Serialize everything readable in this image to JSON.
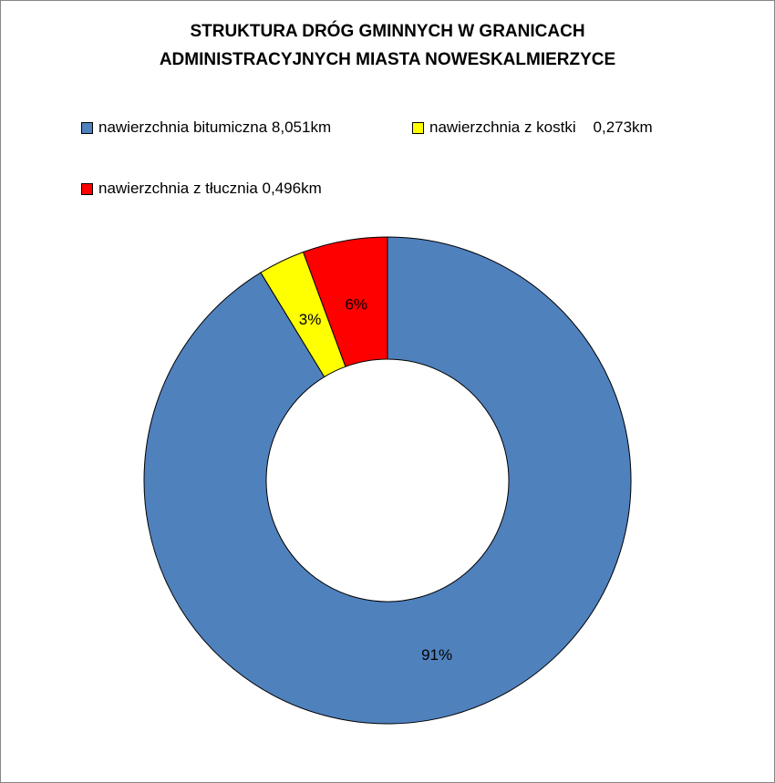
{
  "chart_data": {
    "type": "donut",
    "title_lines": [
      "STRUKTURA DRÓG GMINNYCH W GRANICACH",
      "ADMINISTRACYJNYCH MIASTA NOWESKALMIERZYCE"
    ],
    "legend_position": "top",
    "slices": [
      {
        "name": "nawierzchnia bitumiczna 8,051km",
        "value": 8.051,
        "percent_label": "91%",
        "color": "#4F81BD"
      },
      {
        "name": "nawierzchnia z kostki    0,273km",
        "value": 0.273,
        "percent_label": "3%",
        "color": "#FFFF00"
      },
      {
        "name": "nawierzchnia z tłucznia 0,496km",
        "value": 0.496,
        "percent_label": "6%",
        "color": "#FF0000"
      }
    ],
    "unit": "km"
  }
}
